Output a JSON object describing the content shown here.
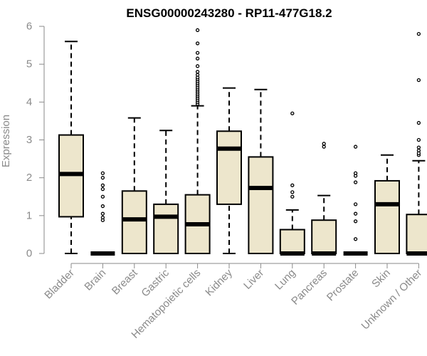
{
  "chart_data": {
    "type": "boxplot",
    "title": "ENSG00000243280 - RP11-477G18.2",
    "ylabel": "Expression",
    "xlabel": "",
    "ylim": [
      0,
      6
    ],
    "yticks": [
      0,
      1,
      2,
      3,
      4,
      5,
      6
    ],
    "grid": false,
    "colors": {
      "box_fill": "#ede6cc",
      "box_stroke": "#000000",
      "axis": "#8a8a8a"
    },
    "categories": [
      "Bladder",
      "Brain",
      "Breast",
      "Gastric",
      "Hematopoietic cells",
      "Kidney",
      "Liver",
      "Lung",
      "Pancreas",
      "Prostate",
      "Skin",
      "Unknown / Other"
    ],
    "boxes": [
      {
        "category": "Bladder",
        "whisker_low": 0,
        "q1": 0.97,
        "median": 2.1,
        "q3": 3.13,
        "whisker_high": 5.6,
        "outliers": []
      },
      {
        "category": "Brain",
        "whisker_low": 0,
        "q1": 0,
        "median": 0,
        "q3": 0,
        "whisker_high": 0,
        "outliers": [
          0.88,
          0.95,
          1.05,
          1.25,
          1.5,
          1.7,
          1.8,
          2.0,
          2.12
        ]
      },
      {
        "category": "Breast",
        "whisker_low": 0,
        "q1": 0,
        "median": 0.9,
        "q3": 1.65,
        "whisker_high": 3.58,
        "outliers": []
      },
      {
        "category": "Gastric",
        "whisker_low": 0,
        "q1": 0,
        "median": 0.97,
        "q3": 1.3,
        "whisker_high": 3.25,
        "outliers": []
      },
      {
        "category": "Hematopoietic cells",
        "whisker_low": 0,
        "q1": 0,
        "median": 0.77,
        "q3": 1.55,
        "whisker_high": 3.9,
        "outliers": [
          3.95,
          4.0,
          4.05,
          4.1,
          4.15,
          4.2,
          4.25,
          4.3,
          4.35,
          4.4,
          4.45,
          4.5,
          4.55,
          4.6,
          4.65,
          4.72,
          4.8,
          4.95,
          5.15,
          5.3,
          5.55,
          5.9
        ]
      },
      {
        "category": "Kidney",
        "whisker_low": 0,
        "q1": 1.3,
        "median": 2.77,
        "q3": 3.23,
        "whisker_high": 4.37,
        "outliers": []
      },
      {
        "category": "Liver",
        "whisker_low": 0,
        "q1": 0,
        "median": 1.73,
        "q3": 2.55,
        "whisker_high": 4.33,
        "outliers": []
      },
      {
        "category": "Lung",
        "whisker_low": 0,
        "q1": 0,
        "median": 0,
        "q3": 0.63,
        "whisker_high": 1.15,
        "outliers": [
          1.5,
          1.62,
          1.8,
          3.7
        ]
      },
      {
        "category": "Pancreas",
        "whisker_low": 0,
        "q1": 0,
        "median": 0,
        "q3": 0.88,
        "whisker_high": 1.53,
        "outliers": [
          2.82,
          2.9
        ]
      },
      {
        "category": "Prostate",
        "whisker_low": 0,
        "q1": 0,
        "median": 0,
        "q3": 0,
        "whisker_high": 0,
        "outliers": [
          0.38,
          0.85,
          1.05,
          1.3,
          1.88,
          2.05,
          2.12,
          2.82
        ]
      },
      {
        "category": "Skin",
        "whisker_low": 0,
        "q1": 0,
        "median": 1.3,
        "q3": 1.92,
        "whisker_high": 2.6,
        "outliers": []
      },
      {
        "category": "Unknown / Other",
        "whisker_low": 0,
        "q1": 0,
        "median": 0,
        "q3": 1.03,
        "whisker_high": 2.45,
        "outliers": [
          2.6,
          2.65,
          2.72,
          2.8,
          3.0,
          3.45,
          4.58,
          5.8
        ]
      }
    ]
  }
}
